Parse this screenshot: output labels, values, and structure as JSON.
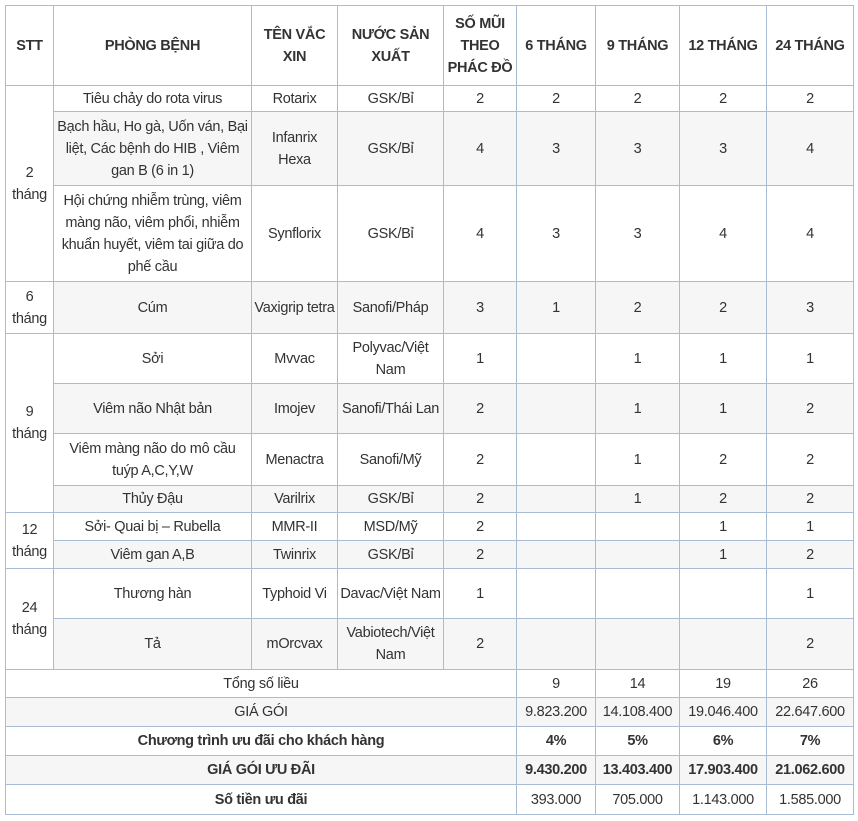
{
  "headers": [
    "STT",
    "PHÒNG BỆNH",
    "TÊN VẮC XIN",
    "NƯỚC SẢN XUẤT",
    "SỐ MŨI THEO PHÁC ĐỒ",
    "6 THÁNG",
    "9 THÁNG",
    "12 THÁNG",
    "24 THÁNG"
  ],
  "groups": [
    {
      "stt": "2 tháng",
      "rows": [
        [
          "Tiêu chảy do rota virus",
          "Rotarix",
          "GSK/Bỉ",
          "2",
          "2",
          "2",
          "2",
          "2"
        ],
        [
          "Bạch hầu, Ho gà, Uốn ván, Bại liệt, Các bệnh do HIB , Viêm gan B (6 in 1)",
          "Infanrix Hexa",
          "GSK/Bỉ",
          "4",
          "3",
          "3",
          "3",
          "4"
        ],
        [
          "Hội chứng nhiễm trùng, viêm màng não, viêm phổi, nhiễm khuẩn huyết, viêm tai giữa do phế cầu",
          "Synflorix",
          "GSK/Bỉ",
          "4",
          "3",
          "3",
          "4",
          "4"
        ]
      ]
    },
    {
      "stt": "6 tháng",
      "rows": [
        [
          "Cúm",
          "Vaxigrip tetra",
          "Sanofi/Pháp",
          "3",
          "1",
          "2",
          "2",
          "3"
        ]
      ]
    },
    {
      "stt": "9 tháng",
      "rows": [
        [
          "Sởi",
          "Mvvac",
          "Polyvac/Việt Nam",
          "1",
          "",
          "1",
          "1",
          "1"
        ],
        [
          "Viêm não Nhật bản",
          "Imojev",
          "Sanofi/Thái Lan",
          "2",
          "",
          "1",
          "1",
          "2"
        ],
        [
          "Viêm màng não do mô cầu tuýp A,C,Y,W",
          "Menactra",
          "Sanofi/Mỹ",
          "2",
          "",
          "1",
          "2",
          "2"
        ],
        [
          "Thủy Đậu",
          "Varilrix",
          "GSK/Bỉ",
          "2",
          "",
          "1",
          "2",
          "2"
        ]
      ]
    },
    {
      "stt": "12 tháng",
      "rows": [
        [
          "Sởi- Quai bị – Rubella",
          "MMR-II",
          "MSD/Mỹ",
          "2",
          "",
          "",
          "1",
          "1"
        ],
        [
          "Viêm gan A,B",
          "Twinrix",
          "GSK/Bỉ",
          "2",
          "",
          "",
          "1",
          "2"
        ]
      ]
    },
    {
      "stt": "24 tháng",
      "rows": [
        [
          "Thương hàn",
          "Typhoid Vi",
          "Davac/Việt Nam",
          "1",
          "",
          "",
          "",
          "1"
        ],
        [
          "Tả",
          "mOrcvax",
          "Vabiotech/Việt Nam",
          "2",
          "",
          "",
          "",
          "2"
        ]
      ]
    }
  ],
  "summary": [
    {
      "label": "Tổng số liều",
      "values": [
        "9",
        "14",
        "19",
        "26"
      ],
      "bold": false
    },
    {
      "label": "GIÁ GÓI",
      "values": [
        "9.823.200",
        "14.108.400",
        "19.046.400",
        "22.647.600"
      ],
      "bold": false
    },
    {
      "label": "Chương trình ưu đãi cho khách hàng",
      "values": [
        "4%",
        "5%",
        "6%",
        "7%"
      ],
      "bold": true
    },
    {
      "label": "GIÁ GÓI ƯU ĐÃI",
      "values": [
        "9.430.200",
        "13.403.400",
        "17.903.400",
        "21.062.600"
      ],
      "bold": true
    },
    {
      "label": "Số tiền ưu đãi",
      "values": [
        "393.000",
        "705.000",
        "1.143.000",
        "1.585.000"
      ],
      "bold": "label"
    }
  ],
  "colors": {
    "border": "#a9bcd3",
    "text": "#333333"
  }
}
